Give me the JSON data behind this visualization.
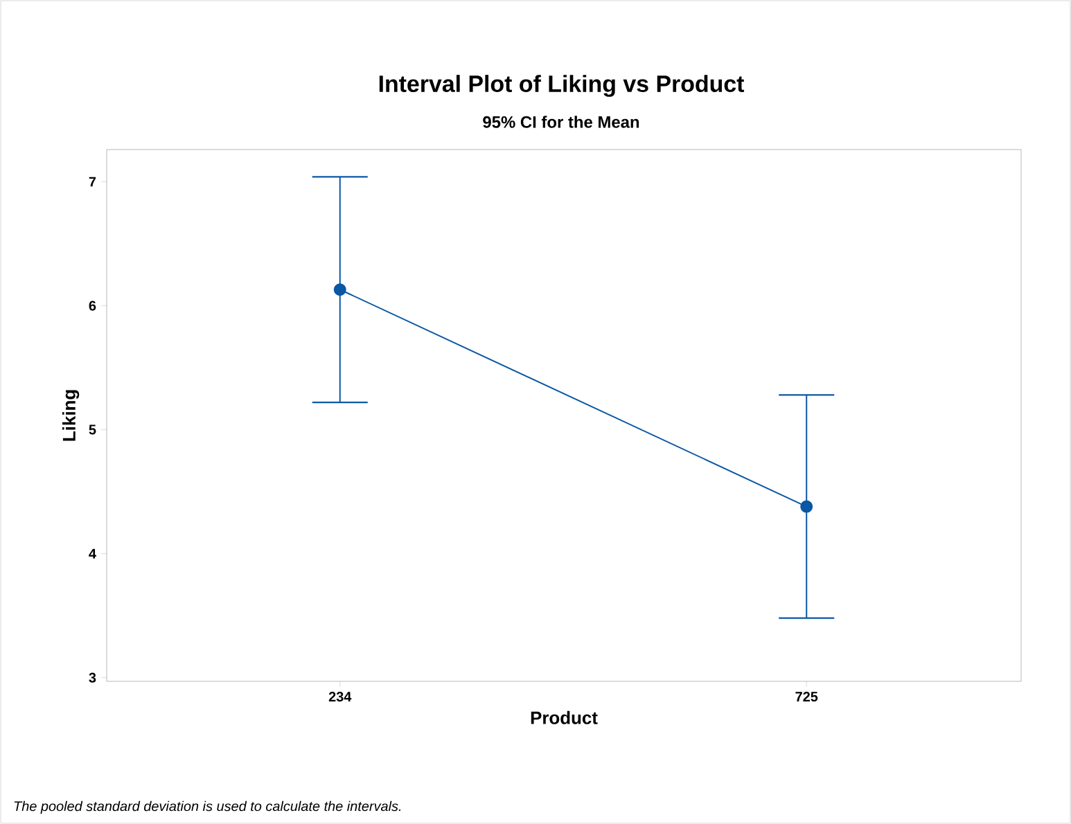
{
  "chart_data": {
    "type": "line",
    "title": "Interval Plot of Liking vs Product",
    "subtitle": "95% CI for the Mean",
    "xlabel": "Product",
    "ylabel": "Liking",
    "categories": [
      "234",
      "725"
    ],
    "series": [
      {
        "color": "#0a57a4",
        "values": [
          6.13,
          4.38
        ],
        "errors": [
          0.91,
          0.9
        ]
      }
    ],
    "ylim": [
      2.97,
      7.26
    ],
    "yticks": [
      3,
      4,
      5,
      6,
      7
    ],
    "grid": false,
    "marker": "circle",
    "line_style": "solid",
    "annotations": [
      "*The pooled standard deviation is used to calculate the intervals.*"
    ]
  }
}
